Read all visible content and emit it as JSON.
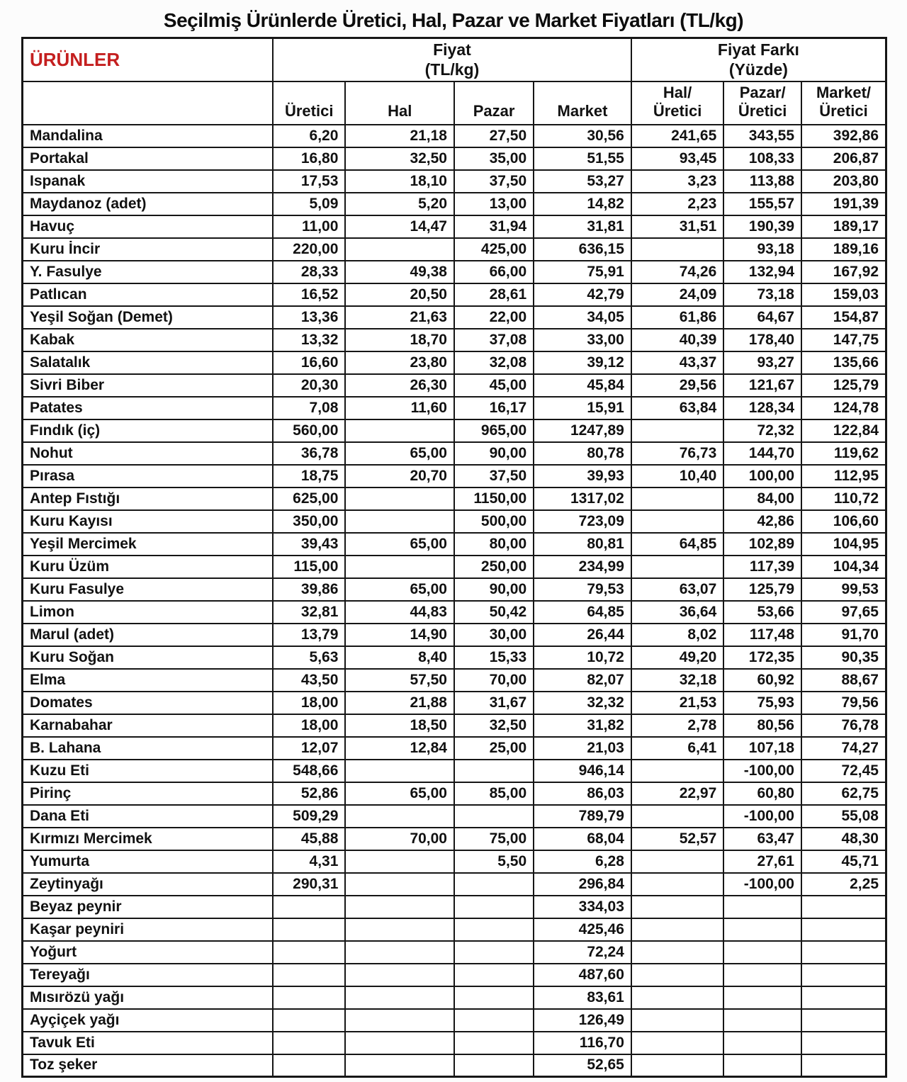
{
  "title": "Seçilmiş Ürünlerde Üretici, Hal, Pazar ve Market Fiyatları (TL/kg)",
  "colors": {
    "products_header_text": "#c41f1f",
    "border": "#161616",
    "text": "#111111"
  },
  "table": {
    "products_header": "ÜRÜNLER",
    "group_fiyat": {
      "line1": "Fiyat",
      "line2": "(TL/kg)"
    },
    "group_fiyat_farki": {
      "line1": "Fiyat Farkı",
      "line2": "(Yüzde)"
    },
    "col_keys": [
      "uretici",
      "hal",
      "pazar",
      "market",
      "hal-uretici",
      "pazar-uretici",
      "market-uretici"
    ],
    "sub_headers": [
      [
        "Üretici"
      ],
      [
        "Hal"
      ],
      [
        "Pazar"
      ],
      [
        "Market"
      ],
      [
        "Hal/",
        "Üretici"
      ],
      [
        "Pazar/",
        "Üretici"
      ],
      [
        "Market/",
        "Üretici"
      ]
    ],
    "rows": [
      {
        "name": "Mandalina",
        "values": [
          "6,20",
          "21,18",
          "27,50",
          "30,56",
          "241,65",
          "343,55",
          "392,86"
        ]
      },
      {
        "name": "Portakal",
        "values": [
          "16,80",
          "32,50",
          "35,00",
          "51,55",
          "93,45",
          "108,33",
          "206,87"
        ]
      },
      {
        "name": "Ispanak",
        "values": [
          "17,53",
          "18,10",
          "37,50",
          "53,27",
          "3,23",
          "113,88",
          "203,80"
        ]
      },
      {
        "name": "Maydanoz (adet)",
        "values": [
          "5,09",
          "5,20",
          "13,00",
          "14,82",
          "2,23",
          "155,57",
          "191,39"
        ]
      },
      {
        "name": "Havuç",
        "values": [
          "11,00",
          "14,47",
          "31,94",
          "31,81",
          "31,51",
          "190,39",
          "189,17"
        ]
      },
      {
        "name": "Kuru İncir",
        "values": [
          "220,00",
          "",
          "425,00",
          "636,15",
          "",
          "93,18",
          "189,16"
        ]
      },
      {
        "name": "Y. Fasulye",
        "values": [
          "28,33",
          "49,38",
          "66,00",
          "75,91",
          "74,26",
          "132,94",
          "167,92"
        ]
      },
      {
        "name": "Patlıcan",
        "values": [
          "16,52",
          "20,50",
          "28,61",
          "42,79",
          "24,09",
          "73,18",
          "159,03"
        ]
      },
      {
        "name": "Yeşil Soğan (Demet)",
        "values": [
          "13,36",
          "21,63",
          "22,00",
          "34,05",
          "61,86",
          "64,67",
          "154,87"
        ]
      },
      {
        "name": "Kabak",
        "values": [
          "13,32",
          "18,70",
          "37,08",
          "33,00",
          "40,39",
          "178,40",
          "147,75"
        ]
      },
      {
        "name": "Salatalık",
        "values": [
          "16,60",
          "23,80",
          "32,08",
          "39,12",
          "43,37",
          "93,27",
          "135,66"
        ]
      },
      {
        "name": "Sivri Biber",
        "values": [
          "20,30",
          "26,30",
          "45,00",
          "45,84",
          "29,56",
          "121,67",
          "125,79"
        ]
      },
      {
        "name": "Patates",
        "values": [
          "7,08",
          "11,60",
          "16,17",
          "15,91",
          "63,84",
          "128,34",
          "124,78"
        ]
      },
      {
        "name": "Fındık (iç)",
        "values": [
          "560,00",
          "",
          "965,00",
          "1247,89",
          "",
          "72,32",
          "122,84"
        ]
      },
      {
        "name": "Nohut",
        "values": [
          "36,78",
          "65,00",
          "90,00",
          "80,78",
          "76,73",
          "144,70",
          "119,62"
        ]
      },
      {
        "name": "Pırasa",
        "values": [
          "18,75",
          "20,70",
          "37,50",
          "39,93",
          "10,40",
          "100,00",
          "112,95"
        ]
      },
      {
        "name": "Antep Fıstığı",
        "values": [
          "625,00",
          "",
          "1150,00",
          "1317,02",
          "",
          "84,00",
          "110,72"
        ]
      },
      {
        "name": "Kuru Kayısı",
        "values": [
          "350,00",
          "",
          "500,00",
          "723,09",
          "",
          "42,86",
          "106,60"
        ]
      },
      {
        "name": "Yeşil Mercimek",
        "values": [
          "39,43",
          "65,00",
          "80,00",
          "80,81",
          "64,85",
          "102,89",
          "104,95"
        ]
      },
      {
        "name": "Kuru Üzüm",
        "values": [
          "115,00",
          "",
          "250,00",
          "234,99",
          "",
          "117,39",
          "104,34"
        ]
      },
      {
        "name": "Kuru Fasulye",
        "values": [
          "39,86",
          "65,00",
          "90,00",
          "79,53",
          "63,07",
          "125,79",
          "99,53"
        ]
      },
      {
        "name": "Limon",
        "values": [
          "32,81",
          "44,83",
          "50,42",
          "64,85",
          "36,64",
          "53,66",
          "97,65"
        ]
      },
      {
        "name": "Marul (adet)",
        "values": [
          "13,79",
          "14,90",
          "30,00",
          "26,44",
          "8,02",
          "117,48",
          "91,70"
        ]
      },
      {
        "name": "Kuru Soğan",
        "values": [
          "5,63",
          "8,40",
          "15,33",
          "10,72",
          "49,20",
          "172,35",
          "90,35"
        ]
      },
      {
        "name": "Elma",
        "values": [
          "43,50",
          "57,50",
          "70,00",
          "82,07",
          "32,18",
          "60,92",
          "88,67"
        ]
      },
      {
        "name": "Domates",
        "values": [
          "18,00",
          "21,88",
          "31,67",
          "32,32",
          "21,53",
          "75,93",
          "79,56"
        ]
      },
      {
        "name": "Karnabahar",
        "values": [
          "18,00",
          "18,50",
          "32,50",
          "31,82",
          "2,78",
          "80,56",
          "76,78"
        ]
      },
      {
        "name": "B. Lahana",
        "values": [
          "12,07",
          "12,84",
          "25,00",
          "21,03",
          "6,41",
          "107,18",
          "74,27"
        ]
      },
      {
        "name": "Kuzu Eti",
        "values": [
          "548,66",
          "",
          "",
          "946,14",
          "",
          "-100,00",
          "72,45"
        ]
      },
      {
        "name": "Pirinç",
        "values": [
          "52,86",
          "65,00",
          "85,00",
          "86,03",
          "22,97",
          "60,80",
          "62,75"
        ]
      },
      {
        "name": "Dana Eti",
        "values": [
          "509,29",
          "",
          "",
          "789,79",
          "",
          "-100,00",
          "55,08"
        ]
      },
      {
        "name": "Kırmızı Mercimek",
        "values": [
          "45,88",
          "70,00",
          "75,00",
          "68,04",
          "52,57",
          "63,47",
          "48,30"
        ]
      },
      {
        "name": "Yumurta",
        "values": [
          "4,31",
          "",
          "5,50",
          "6,28",
          "",
          "27,61",
          "45,71"
        ]
      },
      {
        "name": "Zeytinyağı",
        "values": [
          "290,31",
          "",
          "",
          "296,84",
          "",
          "-100,00",
          "2,25"
        ]
      },
      {
        "name": "Beyaz peynir",
        "values": [
          "",
          "",
          "",
          "334,03",
          "",
          "",
          ""
        ]
      },
      {
        "name": "Kaşar peyniri",
        "values": [
          "",
          "",
          "",
          "425,46",
          "",
          "",
          ""
        ]
      },
      {
        "name": "Yoğurt",
        "values": [
          "",
          "",
          "",
          "72,24",
          "",
          "",
          ""
        ]
      },
      {
        "name": "Tereyağı",
        "values": [
          "",
          "",
          "",
          "487,60",
          "",
          "",
          ""
        ]
      },
      {
        "name": "Mısırözü yağı",
        "values": [
          "",
          "",
          "",
          "83,61",
          "",
          "",
          ""
        ]
      },
      {
        "name": "Ayçiçek yağı",
        "values": [
          "",
          "",
          "",
          "126,49",
          "",
          "",
          ""
        ]
      },
      {
        "name": "Tavuk Eti",
        "values": [
          "",
          "",
          "",
          "116,70",
          "",
          "",
          ""
        ]
      },
      {
        "name": "Toz şeker",
        "values": [
          "",
          "",
          "",
          "52,65",
          "",
          "",
          ""
        ]
      }
    ]
  }
}
